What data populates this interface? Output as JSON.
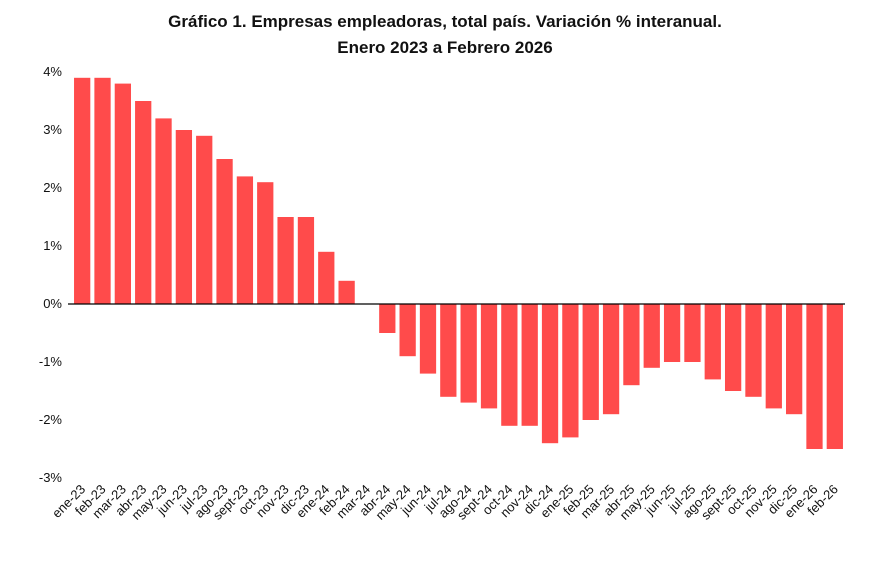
{
  "chart_data": {
    "type": "bar",
    "title": "Gráfico 1. Empresas empleadoras, total país. Variación % interanual.",
    "subtitle": "Enero 2023 a Febrero 2026",
    "categories": [
      "ene-23",
      "feb-23",
      "mar-23",
      "abr-23",
      "may-23",
      "jun-23",
      "jul-23",
      "ago-23",
      "sept-23",
      "oct-23",
      "nov-23",
      "dic-23",
      "ene-24",
      "feb-24",
      "mar-24",
      "abr-24",
      "may-24",
      "jun-24",
      "jul-24",
      "ago-24",
      "sept-24",
      "oct-24",
      "nov-24",
      "dic-24",
      "ene-25",
      "feb-25",
      "mar-25",
      "abr-25",
      "may-25",
      "jun-25",
      "jul-25",
      "ago-25",
      "sept-25",
      "oct-25",
      "nov-25",
      "dic-25",
      "ene-26",
      "feb-26"
    ],
    "values": [
      3.9,
      3.9,
      3.8,
      3.5,
      3.2,
      3.0,
      2.9,
      2.5,
      2.2,
      2.1,
      1.5,
      1.5,
      0.9,
      0.4,
      0,
      -0.5,
      -0.9,
      -1.2,
      -1.6,
      -1.7,
      -1.8,
      -2.1,
      -2.1,
      -2.4,
      -2.3,
      -2.0,
      -1.9,
      -1.4,
      -1.1,
      -1.0,
      -1.0,
      -1.3,
      -1.5,
      -1.6,
      -1.8,
      -1.9,
      -2.5,
      -2.5
    ],
    "color": "#ff4b4b",
    "ylim": [
      -3,
      4
    ],
    "yticks": [
      {
        "value": -3,
        "label": "-3%"
      },
      {
        "value": -2,
        "label": "-2%"
      },
      {
        "value": -1,
        "label": "-1%"
      },
      {
        "value": 0,
        "label": "0%"
      },
      {
        "value": 1,
        "label": "1%"
      },
      {
        "value": 2,
        "label": "2%"
      },
      {
        "value": 3,
        "label": "3%"
      },
      {
        "value": 4,
        "label": "4%"
      }
    ],
    "grid": false
  }
}
